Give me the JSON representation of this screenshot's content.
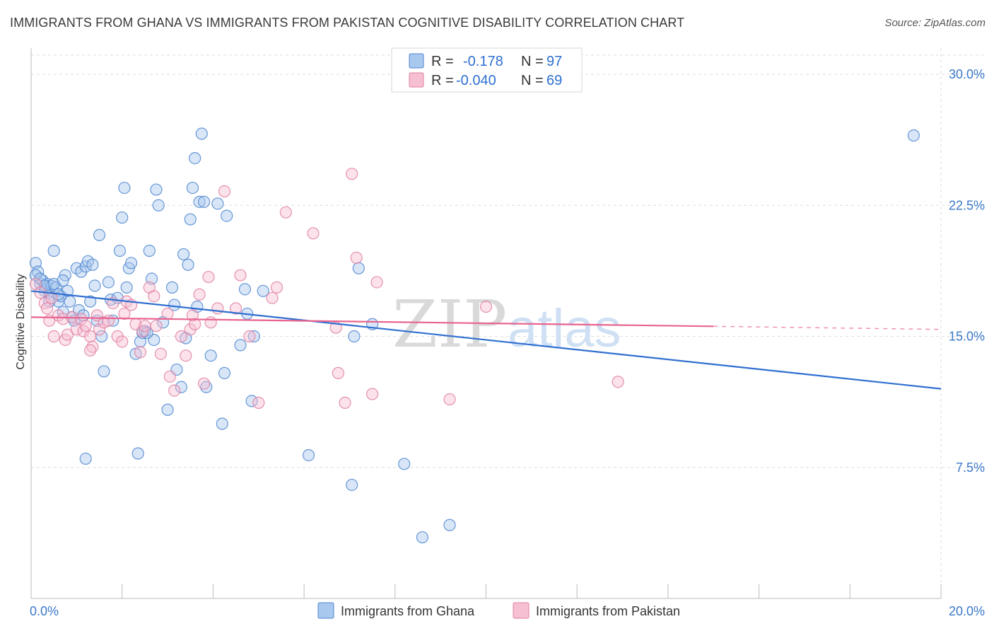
{
  "title": "IMMIGRANTS FROM GHANA VS IMMIGRANTS FROM PAKISTAN COGNITIVE DISABILITY CORRELATION CHART",
  "source": "Source: ZipAtlas.com",
  "watermark": {
    "zip": "ZIP",
    "atlas": "atlas"
  },
  "colors": {
    "ghana_fill": "#a9c8ee",
    "ghana_stroke": "#4f86d0",
    "ghana_line": "#2f6fd0",
    "pakistan_fill": "#f6bfd2",
    "pakistan_stroke": "#e07fa2",
    "pakistan_line": "#e8648f",
    "tick_label": "#3a78c9",
    "grid": "#dddddd"
  },
  "legend": {
    "r_label": "R =",
    "n_label": "N =",
    "ghana": {
      "r": "-0.178",
      "n": "97"
    },
    "pakistan": {
      "r": "-0.040",
      "n": "69"
    }
  },
  "chart_data": {
    "type": "scatter",
    "title": "IMMIGRANTS FROM GHANA VS IMMIGRANTS FROM PAKISTAN COGNITIVE DISABILITY CORRELATION CHART",
    "xlabel": "",
    "ylabel": "Cognitive Disability",
    "xlim": [
      0,
      20
    ],
    "ylim": [
      0,
      31.5
    ],
    "x_tick_labels": [
      "0.0%",
      "20.0%"
    ],
    "y_ticks": [
      7.5,
      15.0,
      22.5,
      30.0
    ],
    "y_tick_labels": [
      "7.5%",
      "15.0%",
      "22.5%",
      "30.0%"
    ],
    "grid": true,
    "series": [
      {
        "name": "Immigrants from Ghana",
        "trend": {
          "x0": 0,
          "y0": 17.6,
          "x1": 20,
          "y1": 12.0,
          "dashed_from": null
        },
        "points": [
          [
            0.1,
            19.2
          ],
          [
            0.15,
            18.7
          ],
          [
            0.2,
            18.0
          ],
          [
            0.25,
            18.2
          ],
          [
            0.3,
            17.6
          ],
          [
            0.35,
            18.0
          ],
          [
            0.4,
            17.5
          ],
          [
            0.45,
            17.9
          ],
          [
            0.5,
            19.9
          ],
          [
            0.55,
            17.8
          ],
          [
            0.6,
            17.0
          ],
          [
            0.65,
            17.3
          ],
          [
            0.7,
            16.4
          ],
          [
            0.75,
            18.5
          ],
          [
            0.8,
            17.6
          ],
          [
            0.85,
            17.0
          ],
          [
            0.9,
            16.1
          ],
          [
            0.95,
            15.9
          ],
          [
            1.0,
            18.9
          ],
          [
            1.05,
            16.5
          ],
          [
            1.1,
            18.7
          ],
          [
            1.2,
            19.0
          ],
          [
            1.25,
            19.3
          ],
          [
            1.3,
            17.0
          ],
          [
            1.35,
            19.1
          ],
          [
            1.4,
            17.9
          ],
          [
            1.45,
            15.9
          ],
          [
            1.5,
            20.8
          ],
          [
            1.55,
            15.0
          ],
          [
            1.6,
            13.0
          ],
          [
            1.7,
            18.1
          ],
          [
            1.75,
            17.1
          ],
          [
            1.8,
            15.9
          ],
          [
            1.9,
            17.2
          ],
          [
            1.95,
            19.9
          ],
          [
            2.0,
            21.8
          ],
          [
            2.05,
            23.5
          ],
          [
            2.1,
            17.8
          ],
          [
            2.15,
            18.9
          ],
          [
            2.2,
            19.2
          ],
          [
            2.3,
            14.0
          ],
          [
            2.35,
            8.3
          ],
          [
            2.4,
            14.7
          ],
          [
            2.45,
            15.2
          ],
          [
            2.5,
            15.3
          ],
          [
            2.6,
            19.9
          ],
          [
            2.65,
            18.3
          ],
          [
            2.7,
            14.8
          ],
          [
            2.75,
            23.4
          ],
          [
            2.8,
            22.5
          ],
          [
            2.9,
            15.8
          ],
          [
            3.0,
            10.8
          ],
          [
            3.1,
            17.8
          ],
          [
            3.15,
            16.8
          ],
          [
            3.2,
            13.1
          ],
          [
            3.3,
            12.1
          ],
          [
            3.35,
            19.7
          ],
          [
            3.4,
            14.9
          ],
          [
            3.45,
            19.1
          ],
          [
            3.5,
            21.7
          ],
          [
            3.55,
            23.5
          ],
          [
            3.6,
            25.2
          ],
          [
            3.65,
            16.7
          ],
          [
            3.7,
            22.7
          ],
          [
            3.75,
            26.6
          ],
          [
            3.8,
            22.7
          ],
          [
            3.85,
            12.1
          ],
          [
            3.95,
            13.9
          ],
          [
            4.1,
            22.6
          ],
          [
            4.2,
            10.0
          ],
          [
            4.25,
            12.9
          ],
          [
            4.3,
            21.9
          ],
          [
            4.6,
            14.5
          ],
          [
            4.7,
            17.7
          ],
          [
            4.75,
            16.3
          ],
          [
            4.85,
            11.3
          ],
          [
            4.9,
            15.0
          ],
          [
            5.1,
            17.6
          ],
          [
            1.2,
            8.0
          ],
          [
            6.1,
            8.2
          ],
          [
            7.05,
            6.5
          ],
          [
            7.1,
            15.0
          ],
          [
            7.2,
            18.9
          ],
          [
            7.5,
            15.7
          ],
          [
            8.2,
            7.7
          ],
          [
            8.6,
            3.5
          ],
          [
            9.2,
            4.2
          ],
          [
            19.4,
            26.5
          ],
          [
            0.1,
            18.5
          ],
          [
            0.2,
            18.3
          ],
          [
            0.3,
            17.9
          ],
          [
            0.4,
            17.0
          ],
          [
            0.5,
            18.0
          ],
          [
            0.6,
            17.4
          ],
          [
            0.7,
            18.2
          ],
          [
            2.55,
            15.2
          ],
          [
            1.15,
            16.2
          ]
        ]
      },
      {
        "name": "Immigrants from Pakistan",
        "trend": {
          "x0": 0,
          "y0": 16.1,
          "x1": 20,
          "y1": 15.4,
          "dashed_from": 15.0
        },
        "points": [
          [
            0.1,
            18.0
          ],
          [
            0.2,
            17.5
          ],
          [
            0.3,
            16.9
          ],
          [
            0.35,
            16.6
          ],
          [
            0.4,
            15.9
          ],
          [
            0.45,
            17.2
          ],
          [
            0.5,
            15.0
          ],
          [
            0.6,
            16.2
          ],
          [
            0.7,
            16.0
          ],
          [
            0.75,
            14.8
          ],
          [
            0.8,
            15.1
          ],
          [
            0.9,
            16.1
          ],
          [
            1.0,
            15.4
          ],
          [
            1.1,
            16.0
          ],
          [
            1.15,
            15.3
          ],
          [
            1.2,
            15.6
          ],
          [
            1.3,
            15.0
          ],
          [
            1.35,
            14.4
          ],
          [
            1.45,
            16.2
          ],
          [
            1.5,
            15.4
          ],
          [
            1.6,
            15.8
          ],
          [
            1.7,
            15.9
          ],
          [
            1.8,
            16.9
          ],
          [
            1.9,
            15.0
          ],
          [
            2.0,
            14.7
          ],
          [
            2.05,
            16.3
          ],
          [
            2.1,
            17.0
          ],
          [
            2.2,
            16.8
          ],
          [
            2.3,
            15.7
          ],
          [
            2.4,
            14.1
          ],
          [
            2.45,
            15.3
          ],
          [
            2.5,
            15.6
          ],
          [
            2.6,
            17.8
          ],
          [
            2.7,
            17.3
          ],
          [
            2.75,
            15.6
          ],
          [
            2.85,
            14.0
          ],
          [
            3.0,
            16.3
          ],
          [
            3.05,
            12.7
          ],
          [
            3.15,
            11.9
          ],
          [
            3.3,
            15.0
          ],
          [
            3.4,
            13.9
          ],
          [
            3.5,
            15.4
          ],
          [
            3.55,
            16.2
          ],
          [
            3.6,
            15.7
          ],
          [
            3.7,
            17.4
          ],
          [
            3.8,
            12.3
          ],
          [
            3.9,
            18.4
          ],
          [
            3.95,
            15.8
          ],
          [
            4.1,
            16.6
          ],
          [
            4.25,
            23.3
          ],
          [
            4.5,
            16.6
          ],
          [
            4.6,
            18.5
          ],
          [
            4.8,
            15.0
          ],
          [
            5.0,
            11.2
          ],
          [
            5.3,
            17.2
          ],
          [
            5.4,
            17.8
          ],
          [
            5.6,
            22.1
          ],
          [
            6.2,
            20.9
          ],
          [
            6.7,
            15.5
          ],
          [
            6.75,
            12.9
          ],
          [
            6.9,
            11.2
          ],
          [
            7.05,
            24.3
          ],
          [
            7.15,
            19.5
          ],
          [
            7.5,
            11.7
          ],
          [
            7.6,
            18.1
          ],
          [
            9.2,
            11.4
          ],
          [
            10.0,
            16.7
          ],
          [
            12.9,
            12.4
          ],
          [
            1.3,
            14.2
          ]
        ]
      }
    ]
  },
  "bottom_legend": {
    "ghana": "Immigrants from Ghana",
    "pakistan": "Immigrants from Pakistan"
  }
}
